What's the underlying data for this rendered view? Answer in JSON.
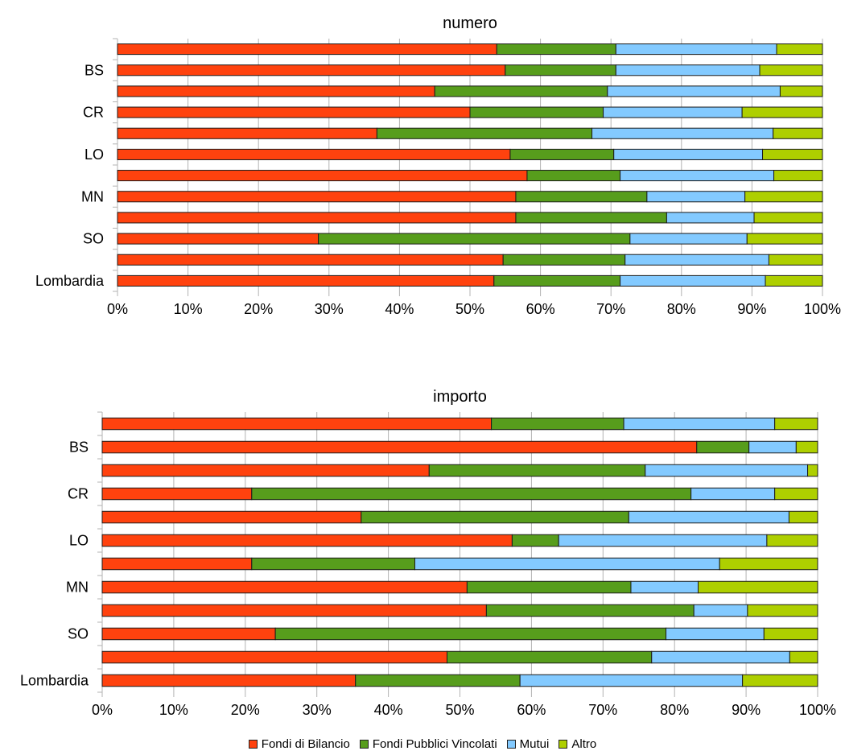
{
  "series": [
    {
      "name": "Fondi di Bilancio",
      "color": "#ff420e"
    },
    {
      "name": "Fondi Pubblici Vincolati",
      "color": "#579d1c"
    },
    {
      "name": "Mutui",
      "color": "#83caff"
    },
    {
      "name": "Altro",
      "color": "#aecf00"
    }
  ],
  "chart_data": [
    {
      "type": "bar",
      "stacked": "percent",
      "orientation": "horizontal",
      "title": "numero",
      "categories": [
        "",
        "BS",
        "",
        "CR",
        "",
        "LO",
        "",
        "MN",
        "",
        "SO",
        "",
        "Lombardia"
      ],
      "series": [
        {
          "name": "Fondi di Bilancio",
          "values": [
            53.8,
            55.0,
            45.0,
            50.0,
            36.8,
            55.7,
            58.1,
            56.5,
            56.5,
            28.5,
            54.7,
            53.4
          ]
        },
        {
          "name": "Fondi Pubblici Vincolati",
          "values": [
            16.9,
            15.7,
            24.5,
            18.9,
            30.5,
            14.7,
            13.2,
            18.6,
            21.4,
            44.2,
            17.3,
            17.9
          ]
        },
        {
          "name": "Mutui",
          "values": [
            22.8,
            20.4,
            24.5,
            19.7,
            25.7,
            21.1,
            21.8,
            13.9,
            12.4,
            16.6,
            20.4,
            20.6
          ]
        },
        {
          "name": "Altro",
          "values": [
            6.5,
            8.9,
            6.0,
            11.4,
            7.0,
            8.5,
            6.9,
            11.0,
            9.7,
            10.7,
            7.6,
            8.1
          ]
        }
      ],
      "xlim": [
        0,
        100
      ],
      "xticks": [
        "0%",
        "10%",
        "20%",
        "30%",
        "40%",
        "50%",
        "60%",
        "70%",
        "80%",
        "90%",
        "100%"
      ],
      "grid": "vertical"
    },
    {
      "type": "bar",
      "stacked": "percent",
      "orientation": "horizontal",
      "title": "importo",
      "categories": [
        "",
        "BS",
        "",
        "CR",
        "",
        "LO",
        "",
        "MN",
        "",
        "SO",
        "",
        "Lombardia"
      ],
      "series": [
        {
          "name": "Fondi di Bilancio",
          "values": [
            54.4,
            83.1,
            45.7,
            20.9,
            36.2,
            57.3,
            20.9,
            51.0,
            53.7,
            24.2,
            48.2,
            35.4
          ]
        },
        {
          "name": "Fondi Pubblici Vincolati",
          "values": [
            18.5,
            7.3,
            30.2,
            61.4,
            37.4,
            6.5,
            22.8,
            22.9,
            29.0,
            54.6,
            28.6,
            23.0
          ]
        },
        {
          "name": "Mutui",
          "values": [
            21.1,
            6.6,
            22.7,
            11.7,
            22.4,
            29.1,
            42.6,
            9.4,
            7.5,
            13.7,
            19.3,
            31.1
          ]
        },
        {
          "name": "Altro",
          "values": [
            6.0,
            3.0,
            1.4,
            6.0,
            4.0,
            7.1,
            13.7,
            16.7,
            9.8,
            7.5,
            3.9,
            10.5
          ]
        }
      ],
      "xlim": [
        0,
        100
      ],
      "xticks": [
        "0%",
        "10%",
        "20%",
        "30%",
        "40%",
        "50%",
        "60%",
        "70%",
        "80%",
        "90%",
        "100%"
      ],
      "grid": "vertical"
    }
  ]
}
